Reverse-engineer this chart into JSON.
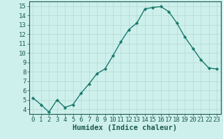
{
  "x": [
    0,
    1,
    2,
    3,
    4,
    5,
    6,
    7,
    8,
    9,
    10,
    11,
    12,
    13,
    14,
    15,
    16,
    17,
    18,
    19,
    20,
    21,
    22,
    23
  ],
  "y": [
    5.2,
    4.5,
    3.7,
    5.0,
    4.2,
    4.5,
    5.7,
    6.7,
    7.8,
    8.3,
    9.7,
    11.2,
    12.5,
    13.2,
    14.7,
    14.85,
    14.95,
    14.4,
    13.2,
    11.7,
    10.5,
    9.3,
    8.4,
    8.3
  ],
  "line_color": "#1a7a6e",
  "marker_color": "#1a7a6e",
  "bg_color": "#cef0ec",
  "grid_color": "#b8dbd6",
  "xlabel": "Humidex (Indice chaleur)",
  "xlabel_color": "#1a5a52",
  "ylim": [
    3.5,
    15.5
  ],
  "xlim": [
    -0.5,
    23.5
  ],
  "yticks": [
    4,
    5,
    6,
    7,
    8,
    9,
    10,
    11,
    12,
    13,
    14,
    15
  ],
  "xticks": [
    0,
    1,
    2,
    3,
    4,
    5,
    6,
    7,
    8,
    9,
    10,
    11,
    12,
    13,
    14,
    15,
    16,
    17,
    18,
    19,
    20,
    21,
    22,
    23
  ],
  "tick_color": "#1a5a52",
  "axis_color": "#1a5a52",
  "font_size": 6.5,
  "xlabel_fontsize": 7.5,
  "marker_size": 2.2,
  "line_width": 1.0
}
